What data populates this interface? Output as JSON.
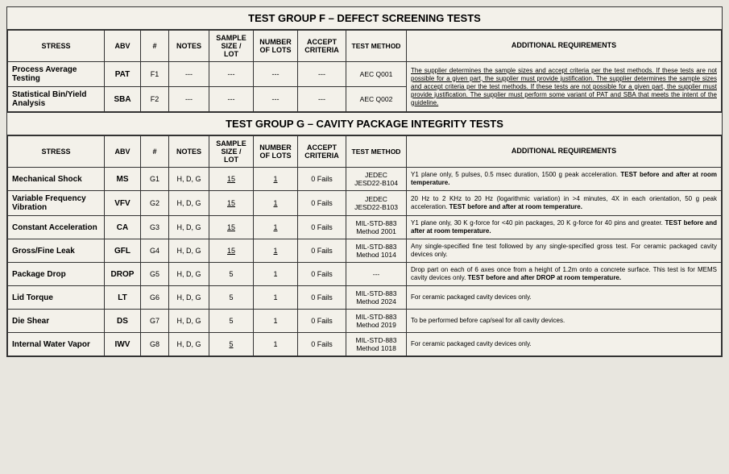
{
  "groupF": {
    "title": "TEST GROUP F – DEFECT SCREENING TESTS",
    "headers": {
      "stress": "STRESS",
      "abv": "ABV",
      "num": "#",
      "notes": "NOTES",
      "sample": "SAMPLE SIZE / LOT",
      "lots": "NUMBER OF LOTS",
      "accept": "ACCEPT CRITERIA",
      "method": "TEST METHOD",
      "req": "ADDITIONAL REQUIREMENTS"
    },
    "rows": [
      {
        "stress": "Process Average Testing",
        "abv": "PAT",
        "num": "F1",
        "notes": "---",
        "sample": "---",
        "lots": "---",
        "accept": "---",
        "method": "AEC Q001"
      },
      {
        "stress": "Statistical Bin/Yield Analysis",
        "abv": "SBA",
        "num": "F2",
        "notes": "---",
        "sample": "---",
        "lots": "---",
        "accept": "---",
        "method": "AEC Q002"
      }
    ],
    "mergedReq": "The supplier determines the sample sizes and accept criteria per the test methods.  If these tests are not possible for a given part, the supplier must provide justification.  The supplier determines the sample sizes and accept criteria per the test methods.  If these tests are not possible for a given part, the supplier must provide justification.  The supplier must perform some variant of PAT and SBA that meets the intent of the guideline."
  },
  "groupG": {
    "title": "TEST GROUP G – CAVITY PACKAGE INTEGRITY TESTS",
    "headers": {
      "stress": "STRESS",
      "abv": "ABV",
      "num": "#",
      "notes": "NOTES",
      "sample": "SAMPLE SIZE / LOT",
      "lots": "NUMBER OF LOTS",
      "accept": "ACCEPT CRITERIA",
      "method": "TEST METHOD",
      "req": "ADDITIONAL REQUIREMENTS"
    },
    "rows": [
      {
        "stress": "Mechanical Shock",
        "abv": "MS",
        "num": "G1",
        "notes": "H, D, G",
        "sample": "15",
        "sampleU": true,
        "lots": "1",
        "lotsU": true,
        "accept": "0 Fails",
        "method": "JEDEC JESD22-B104",
        "req": "Y1 plane only, 5 pulses, 0.5 msec duration, 1500 g peak acceleration. ",
        "reqBold": "TEST before and after at room temperature."
      },
      {
        "stress": "Variable Frequency Vibration",
        "abv": "VFV",
        "num": "G2",
        "notes": "H, D, G",
        "sample": "15",
        "sampleU": true,
        "lots": "1",
        "lotsU": true,
        "accept": "0 Fails",
        "method": "JEDEC JESD22-B103",
        "req": "20 Hz to 2 KHz to 20 Hz (logarithmic variation) in >4 minutes, 4X in each orientation, 50 g peak acceleration. ",
        "reqBold": "TEST before and after at room temperature."
      },
      {
        "stress": "Constant Acceleration",
        "abv": "CA",
        "num": "G3",
        "notes": "H, D, G",
        "sample": "15",
        "sampleU": true,
        "lots": "1",
        "lotsU": true,
        "accept": "0 Fails",
        "method": "MIL-STD-883 Method 2001",
        "req": "Y1 plane only, 30 K g-force for <40 pin packages, 20 K g-force for 40 pins and greater. ",
        "reqBold": "TEST before and after at room temperature."
      },
      {
        "stress": "Gross/Fine Leak",
        "abv": "GFL",
        "num": "G4",
        "notes": "H, D, G",
        "sample": "15",
        "sampleU": true,
        "lots": "1",
        "lotsU": true,
        "accept": "0 Fails",
        "method": "MIL-STD-883 Method 1014",
        "req": "Any single-specified fine test followed by any single-specified gross test.  For ceramic packaged cavity devices only.",
        "reqBold": ""
      },
      {
        "stress": "Package Drop",
        "abv": "DROP",
        "num": "G5",
        "notes": "H, D, G",
        "sample": "5",
        "sampleU": false,
        "lots": "1",
        "lotsU": false,
        "accept": "0 Fails",
        "method": "---",
        "req": "Drop part on each of 6 axes once from a height of 1.2m onto a concrete surface.  This test is for MEMS cavity devices only. ",
        "reqBold": "TEST before and after DROP at room temperature."
      },
      {
        "stress": "Lid Torque",
        "abv": "LT",
        "num": "G6",
        "notes": "H, D, G",
        "sample": "5",
        "sampleU": false,
        "lots": "1",
        "lotsU": false,
        "accept": "0 Fails",
        "method": "MIL-STD-883 Method 2024",
        "req": "For ceramic packaged cavity devices only.",
        "reqBold": ""
      },
      {
        "stress": "Die Shear",
        "abv": "DS",
        "num": "G7",
        "notes": "H, D, G",
        "sample": "5",
        "sampleU": false,
        "lots": "1",
        "lotsU": false,
        "accept": "0 Fails",
        "method": "MIL-STD-883 Method 2019",
        "req": "To be performed before cap/seal for all cavity devices.",
        "reqBold": ""
      },
      {
        "stress": "Internal Water Vapor",
        "abv": "IWV",
        "num": "G8",
        "notes": "H, D, G",
        "sample": "5",
        "sampleU": true,
        "lots": "1",
        "lotsU": false,
        "accept": "0 Fails",
        "method": "MIL-STD-883 Method 1018",
        "req": "For ceramic packaged cavity devices only.",
        "reqBold": ""
      }
    ]
  }
}
